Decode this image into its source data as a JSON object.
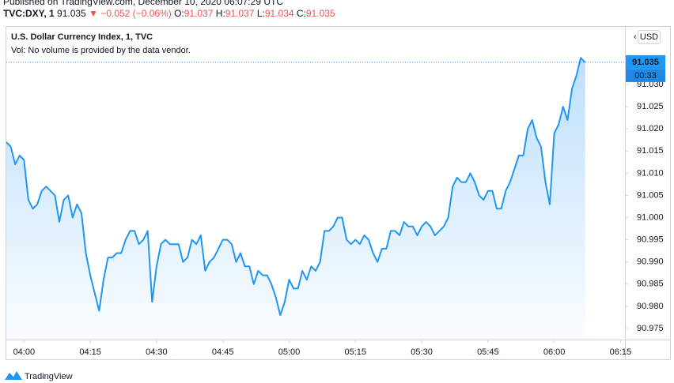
{
  "header": {
    "published": "Published on TradingView.com, December 10, 2020 06:07:29 UTC",
    "symbol": "TVC:DXY, 1",
    "price": "91.035",
    "change": "−0.052 (−0.06%)",
    "ohlc": [
      {
        "label": "O:",
        "value": "91.037"
      },
      {
        "label": "H:",
        "value": "91.037"
      },
      {
        "label": "L:",
        "value": "91.034"
      },
      {
        "label": "C:",
        "value": "91.035"
      }
    ]
  },
  "chart_data": {
    "type": "area",
    "title": "U.S. Dollar Currency Index, 1, TVC",
    "subtitle": "Vol: No volume is provided by the data vendor.",
    "currency": "USD",
    "last_price": 91.035,
    "countdown": "00:33",
    "x": [
      "03:56",
      "03:57",
      "03:58",
      "03:59",
      "04:00",
      "04:01",
      "04:02",
      "04:03",
      "04:04",
      "04:05",
      "04:06",
      "04:07",
      "04:08",
      "04:09",
      "04:10",
      "04:11",
      "04:12",
      "04:13",
      "04:14",
      "04:15",
      "04:16",
      "04:17",
      "04:18",
      "04:19",
      "04:20",
      "04:21",
      "04:22",
      "04:23",
      "04:24",
      "04:25",
      "04:26",
      "04:27",
      "04:28",
      "04:29",
      "04:30",
      "04:31",
      "04:32",
      "04:33",
      "04:34",
      "04:35",
      "04:36",
      "04:37",
      "04:38",
      "04:39",
      "04:40",
      "04:41",
      "04:42",
      "04:43",
      "04:44",
      "04:45",
      "04:46",
      "04:47",
      "04:48",
      "04:49",
      "04:50",
      "04:51",
      "04:52",
      "04:53",
      "04:54",
      "04:55",
      "04:56",
      "04:57",
      "04:58",
      "04:59",
      "05:00",
      "05:01",
      "05:02",
      "05:03",
      "05:04",
      "05:05",
      "05:06",
      "05:07",
      "05:08",
      "05:09",
      "05:10",
      "05:11",
      "05:12",
      "05:13",
      "05:14",
      "05:15",
      "05:16",
      "05:17",
      "05:18",
      "05:19",
      "05:20",
      "05:21",
      "05:22",
      "05:23",
      "05:24",
      "05:25",
      "05:26",
      "05:27",
      "05:28",
      "05:29",
      "05:30",
      "05:31",
      "05:32",
      "05:33",
      "05:34",
      "05:35",
      "05:36",
      "05:37",
      "05:38",
      "05:39",
      "05:40",
      "05:41",
      "05:42",
      "05:43",
      "05:44",
      "05:45",
      "05:46",
      "05:47",
      "05:48",
      "05:49",
      "05:50",
      "05:51",
      "05:52",
      "05:53",
      "05:54",
      "05:55",
      "05:56",
      "05:57",
      "05:58",
      "05:59",
      "06:00",
      "06:01",
      "06:02",
      "06:03",
      "06:04",
      "06:05",
      "06:06",
      "06:07"
    ],
    "series": [
      {
        "color": "#2196f3",
        "values": [
          91.017,
          91.016,
          91.012,
          91.014,
          91.013,
          91.004,
          91.002,
          91.003,
          91.006,
          91.007,
          91.006,
          91.005,
          90.999,
          91.004,
          91.005,
          91.0,
          91.003,
          91.001,
          90.992,
          90.987,
          90.983,
          90.979,
          90.986,
          90.991,
          90.991,
          90.992,
          90.992,
          90.995,
          90.997,
          90.997,
          90.994,
          90.995,
          90.997,
          90.981,
          90.989,
          90.994,
          90.995,
          90.994,
          90.994,
          90.994,
          90.99,
          90.991,
          90.995,
          90.994,
          90.996,
          90.988,
          90.99,
          90.991,
          90.993,
          90.995,
          90.995,
          90.994,
          90.99,
          90.992,
          90.989,
          90.989,
          90.985,
          90.988,
          90.987,
          90.987,
          90.985,
          90.982,
          90.978,
          90.981,
          90.986,
          90.984,
          90.984,
          90.988,
          90.986,
          90.989,
          90.988,
          90.99,
          90.997,
          90.997,
          90.998,
          91.0,
          91.0,
          90.995,
          90.994,
          90.995,
          90.994,
          90.996,
          90.995,
          90.992,
          90.99,
          90.993,
          90.993,
          90.997,
          90.997,
          90.996,
          90.999,
          90.998,
          90.998,
          90.996,
          90.998,
          90.999,
          90.998,
          90.996,
          90.997,
          90.998,
          91.0,
          91.007,
          91.009,
          91.008,
          91.008,
          91.01,
          91.008,
          91.005,
          91.004,
          91.006,
          91.006,
          91.002,
          91.002,
          91.006,
          91.008,
          91.011,
          91.014,
          91.014,
          91.02,
          91.022,
          91.018,
          91.016,
          91.008,
          91.003,
          91.019,
          91.021,
          91.025,
          91.022,
          91.029,
          91.032,
          91.036,
          91.035
        ]
      }
    ],
    "xlim": [
      "03:56",
      "06:16"
    ],
    "xticks": [
      "04:00",
      "04:15",
      "04:30",
      "04:45",
      "05:00",
      "05:15",
      "05:30",
      "05:45",
      "06:00",
      "06:15"
    ],
    "ylim": [
      90.9725,
      91.043
    ],
    "yticks": [
      90.975,
      {
        "value": 90.98,
        "label": "90.980"
      },
      90.985,
      {
        "value": 90.99,
        "label": "90.990"
      },
      90.995,
      {
        "value": 91,
        "label": "91.000"
      },
      91.005,
      {
        "value": 91.01,
        "label": "91.010"
      },
      91.015,
      {
        "value": 91.02,
        "label": "91.020"
      },
      91.025,
      {
        "value": 91.03,
        "label": "91.030"
      }
    ],
    "grid": false
  },
  "footer": {
    "brand": "TradingView"
  }
}
